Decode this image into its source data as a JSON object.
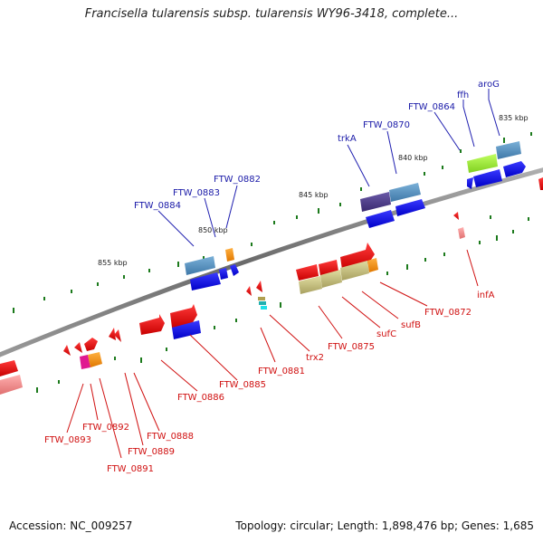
{
  "title": "Francisella tularensis subsp. tularensis WY96-3418, complete...",
  "footer": {
    "accession": "Accession: NC_009257",
    "summary": "Topology: circular; Length: 1,898,476 bp; Genes: 1,685"
  },
  "colors": {
    "forward_label": "#1a1aa8",
    "reverse_label": "#d01010",
    "backbone": "#808080",
    "tick": "#1c7a1c"
  },
  "kbp_labels": [
    "835 kbp",
    "840 kbp",
    "845 kbp",
    "850 kbp",
    "855 kbp"
  ],
  "forward_labels": [
    "aroG",
    "ffh",
    "FTW_0864",
    "FTW_0870",
    "trkA",
    "FTW_0882",
    "FTW_0883",
    "FTW_0884"
  ],
  "reverse_labels": [
    "infA",
    "FTW_0872",
    "sufB",
    "sufC",
    "FTW_0875",
    "trx2",
    "FTW_0881",
    "FTW_0885",
    "FTW_0886",
    "FTW_0888",
    "FTW_0889",
    "FTW_0891",
    "FTW_0892",
    "FTW_0893"
  ]
}
